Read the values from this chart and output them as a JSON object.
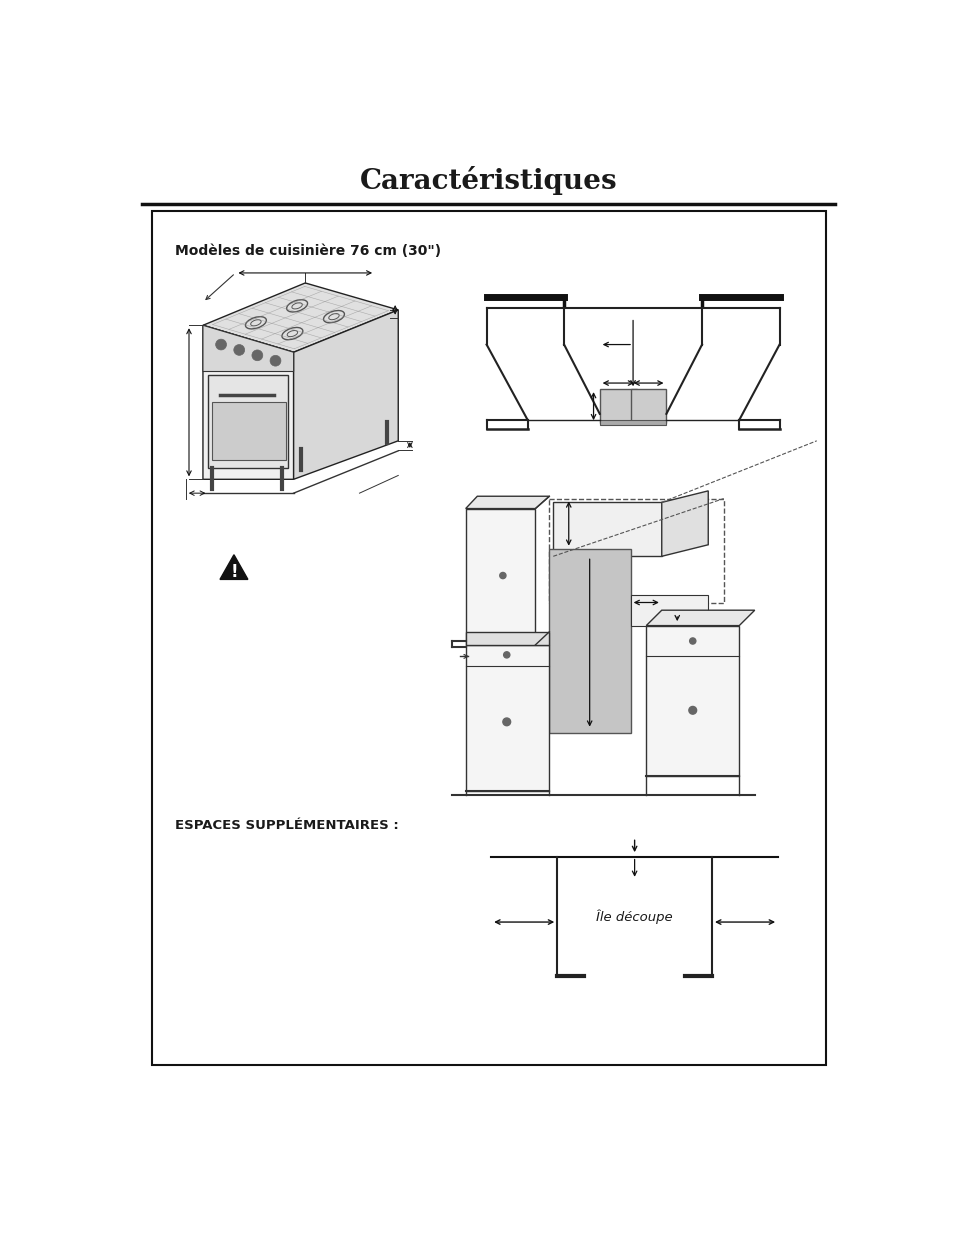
{
  "title": "Caractéristiques",
  "title_fontsize": 20,
  "bg_color": "#ffffff",
  "border_color": "#1a1a1a",
  "text_color": "#1a1a1a",
  "subtitle": "Modèles de cuisinière 76 cm (30\")",
  "subtitle_fontsize": 10,
  "espaces_label": "ESPACES SUPPLÉMENTAIRES :",
  "ile_decoupe_label": "Île découpe"
}
